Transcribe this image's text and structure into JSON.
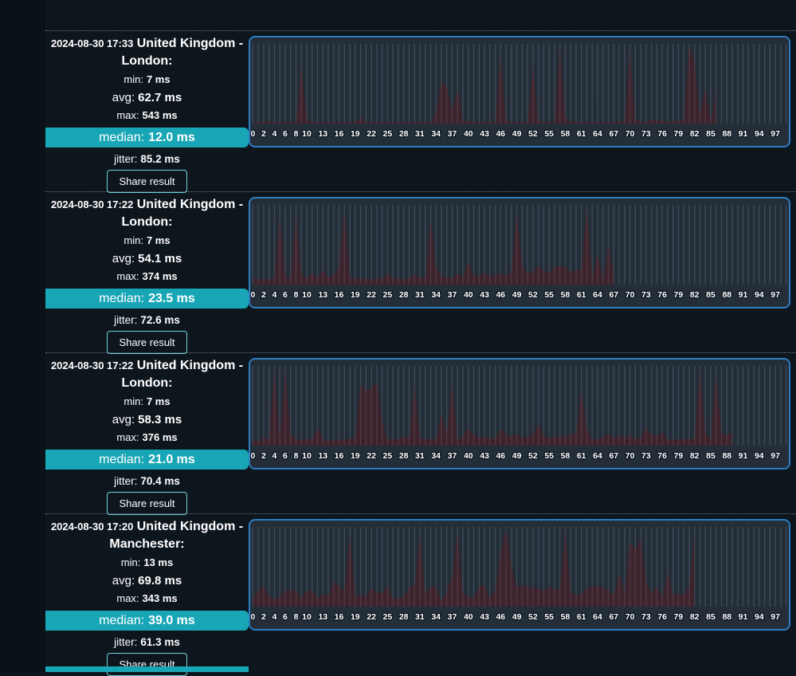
{
  "stat_labels": {
    "min": "min:",
    "avg": "avg:",
    "max": "max:",
    "median": "median:",
    "jitter": "jitter:"
  },
  "results": [
    {
      "timestamp": "2024-08-30 17:33",
      "location": "United Kingdom - London:",
      "min": "7 ms",
      "avg": "62.7 ms",
      "max": "543 ms",
      "median": "12.0 ms",
      "jitter": "85.2 ms",
      "share_label": "Share result"
    },
    {
      "timestamp": "2024-08-30 17:22",
      "location": "United Kingdom - London:",
      "min": "7 ms",
      "avg": "54.1 ms",
      "max": "374 ms",
      "median": "23.5 ms",
      "jitter": "72.6 ms",
      "share_label": "Share result"
    },
    {
      "timestamp": "2024-08-30 17:22",
      "location": "United Kingdom - London:",
      "min": "7 ms",
      "avg": "58.3 ms",
      "max": "376 ms",
      "median": "21.0 ms",
      "jitter": "70.4 ms",
      "share_label": "Share result"
    },
    {
      "timestamp": "2024-08-30 17:20",
      "location": "United Kingdom - Manchester:",
      "min": "13 ms",
      "avg": "69.8 ms",
      "max": "343 ms",
      "median": "39.0 ms",
      "jitter": "61.3 ms",
      "share_label": "Share result"
    }
  ],
  "colors": {
    "page_bg": "#0e161d",
    "median_bg": "#18a6b6",
    "share_border": "#6fd3dd",
    "chart_border": "#2d7ec2",
    "chart_bg": "#232e39",
    "gridline": "#3d4a57",
    "line": "#d90000",
    "label_text": "#ffffff"
  },
  "chart_data": [
    {
      "type": "line",
      "name": "ping latency (ms)",
      "unit": "ms",
      "grid": "vertical",
      "slots": 100,
      "ylim": [
        0,
        560
      ],
      "x_ticks": [
        0,
        2,
        4,
        6,
        8,
        10,
        13,
        16,
        19,
        22,
        25,
        28,
        31,
        34,
        37,
        40,
        43,
        46,
        49,
        52,
        55,
        58,
        61,
        64,
        67,
        70,
        73,
        76,
        79,
        82,
        85,
        88,
        91,
        94,
        97
      ],
      "values": [
        12,
        14,
        12,
        18,
        13,
        12,
        15,
        13,
        12,
        410,
        25,
        14,
        12,
        13,
        12,
        14,
        12,
        12,
        13,
        13,
        40,
        14,
        12,
        12,
        13,
        12,
        12,
        13,
        12,
        13,
        12,
        14,
        12,
        13,
        80,
        300,
        255,
        95,
        240,
        25,
        14,
        13,
        14,
        13,
        15,
        13,
        480,
        18,
        13,
        13,
        14,
        13,
        400,
        16,
        13,
        14,
        13,
        543,
        40,
        14,
        13,
        12,
        13,
        12,
        13,
        12,
        13,
        12,
        14,
        20,
        520,
        30,
        14,
        13,
        25,
        30,
        18,
        14,
        16,
        20,
        30,
        543,
        430,
        60,
        250,
        18,
        235
      ]
    },
    {
      "type": "line",
      "name": "ping latency (ms)",
      "unit": "ms",
      "grid": "vertical",
      "slots": 100,
      "ylim": [
        0,
        385
      ],
      "x_ticks": [
        0,
        2,
        4,
        6,
        8,
        10,
        13,
        16,
        19,
        22,
        25,
        28,
        31,
        34,
        37,
        40,
        43,
        46,
        49,
        52,
        55,
        58,
        61,
        64,
        67,
        70,
        73,
        76,
        79,
        82,
        85,
        88,
        91,
        94,
        97
      ],
      "values": [
        30,
        28,
        22,
        25,
        35,
        330,
        45,
        30,
        340,
        55,
        28,
        60,
        30,
        70,
        35,
        45,
        90,
        360,
        40,
        28,
        30,
        28,
        26,
        28,
        30,
        55,
        28,
        35,
        25,
        30,
        50,
        30,
        35,
        310,
        85,
        40,
        35,
        30,
        55,
        35,
        110,
        45,
        40,
        60,
        40,
        45,
        55,
        45,
        60,
        350,
        90,
        55,
        60,
        95,
        65,
        55,
        85,
        90,
        88,
        60,
        70,
        75,
        374,
        30,
        150,
        28,
        185,
        55
      ]
    },
    {
      "type": "line",
      "name": "ping latency (ms)",
      "unit": "ms",
      "grid": "vertical",
      "slots": 100,
      "ylim": [
        0,
        390
      ],
      "x_ticks": [
        0,
        2,
        4,
        6,
        8,
        10,
        13,
        16,
        19,
        22,
        25,
        28,
        31,
        34,
        37,
        40,
        43,
        46,
        49,
        52,
        55,
        58,
        61,
        64,
        67,
        70,
        73,
        76,
        79,
        82,
        85,
        88,
        91,
        94,
        97
      ],
      "values": [
        25,
        22,
        40,
        28,
        376,
        35,
        376,
        55,
        30,
        28,
        32,
        30,
        90,
        28,
        25,
        26,
        30,
        28,
        35,
        38,
        300,
        270,
        280,
        310,
        115,
        35,
        28,
        32,
        45,
        35,
        300,
        38,
        30,
        32,
        35,
        160,
        55,
        310,
        25,
        45,
        85,
        55,
        40,
        42,
        38,
        36,
        85,
        55,
        45,
        55,
        40,
        45,
        55,
        105,
        50,
        40,
        42,
        48,
        45,
        55,
        60,
        270,
        80,
        35,
        28,
        40,
        60,
        35,
        55,
        38,
        50,
        35,
        40,
        90,
        55,
        45,
        68,
        30,
        28,
        30,
        30,
        32,
        35,
        376,
        70,
        28,
        350,
        60,
        52,
        65
      ]
    },
    {
      "type": "line",
      "name": "ping latency (ms)",
      "unit": "ms",
      "grid": "vertical",
      "slots": 100,
      "ylim": [
        0,
        355
      ],
      "x_ticks": [
        0,
        2,
        4,
        6,
        8,
        10,
        13,
        16,
        19,
        22,
        25,
        28,
        31,
        34,
        37,
        40,
        43,
        46,
        49,
        52,
        55,
        58,
        61,
        64,
        67,
        70,
        73,
        76,
        79,
        82,
        85,
        88,
        91,
        94,
        97
      ],
      "values": [
        40,
        70,
        90,
        50,
        32,
        45,
        68,
        75,
        70,
        42,
        70,
        75,
        38,
        55,
        48,
        110,
        92,
        70,
        330,
        45,
        52,
        45,
        80,
        68,
        58,
        95,
        32,
        38,
        45,
        85,
        100,
        320,
        55,
        88,
        90,
        28,
        68,
        135,
        330,
        55,
        48,
        38,
        88,
        100,
        36,
        75,
        240,
        343,
        185,
        88,
        95,
        88,
        84,
        80,
        68,
        88,
        80,
        75,
        343,
        65,
        52,
        58,
        84,
        90,
        90,
        84,
        72,
        52,
        150,
        60,
        290,
        255,
        300,
        115,
        60,
        88,
        45,
        150,
        52,
        58,
        52,
        92,
        330
      ]
    }
  ]
}
